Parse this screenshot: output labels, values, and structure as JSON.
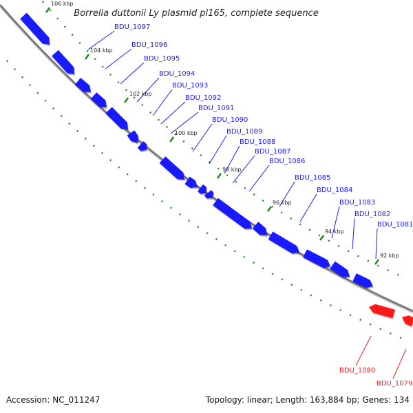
{
  "title": "Borrelia duttonii Ly plasmid pl165, complete sequence",
  "footer": {
    "accession": "Accession: NC_011247",
    "summary": "Topology: linear; Length: 163,884 bp; Genes: 134"
  },
  "colors": {
    "forward_gene": "#1a1aff",
    "reverse_gene": "#ff1a1a",
    "backbone": "#7a7a7a",
    "tick": "#1f8a1f"
  },
  "kbp_labels": [
    "106 kbp",
    "104 kbp",
    "102 kbp",
    "100 kbp",
    "98 kbp",
    "96 kbp",
    "94 kbp",
    "92 kbp"
  ],
  "forward_genes": [
    "BDU_1097",
    "BDU_1096",
    "BDU_1095",
    "BDU_1094",
    "BDU_1093",
    "BDU_1092",
    "BDU_1091",
    "BDU_1090",
    "BDU_1089",
    "BDU_1088",
    "BDU_1087",
    "BDU_1086",
    "BDU_1085",
    "BDU_1084",
    "BDU_1083",
    "BDU_1082",
    "BDU_1081"
  ],
  "reverse_genes": [
    "BDU_1080",
    "BDU_1079"
  ]
}
